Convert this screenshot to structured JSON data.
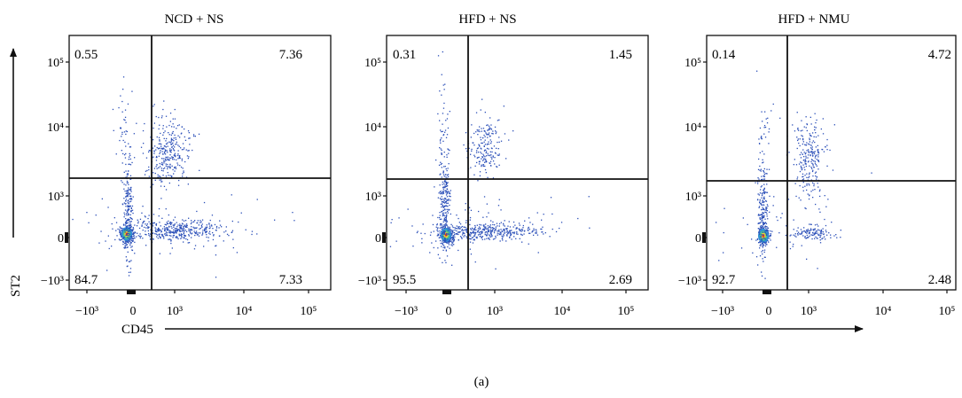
{
  "caption": "(a)",
  "axes": {
    "x_label": "CD45",
    "y_label": "ST2"
  },
  "chart_data": [
    {
      "type": "scatter",
      "title": "NCD + NS",
      "xlabel": "CD45",
      "ylabel": "ST2",
      "x_ticks": [
        "−10³",
        "0",
        "10³",
        "10⁴",
        "10⁵"
      ],
      "y_ticks": [
        "10⁵",
        "10⁴",
        "10³",
        "0",
        "−10³"
      ],
      "quadrants": {
        "upper_left": "0.55",
        "upper_right": "7.36",
        "lower_left": "84.7",
        "lower_right": "7.33"
      }
    },
    {
      "type": "scatter",
      "title": "HFD + NS",
      "xlabel": "CD45",
      "ylabel": "ST2",
      "x_ticks": [
        "−10³",
        "0",
        "10³",
        "10⁴",
        "10⁵"
      ],
      "y_ticks": [
        "10⁵",
        "10⁴",
        "10³",
        "0",
        "−10³"
      ],
      "quadrants": {
        "upper_left": "0.31",
        "upper_right": "1.45",
        "lower_left": "95.5",
        "lower_right": "2.69"
      }
    },
    {
      "type": "scatter",
      "title": "HFD + NMU",
      "xlabel": "CD45",
      "ylabel": "ST2",
      "x_ticks": [
        "−10³",
        "0",
        "10³",
        "10⁴",
        "10⁵"
      ],
      "y_ticks": [
        "10⁵",
        "10⁴",
        "10³",
        "0",
        "−10³"
      ],
      "quadrants": {
        "upper_left": "0.14",
        "upper_right": "4.72",
        "lower_left": "92.7",
        "lower_right": "2.48"
      }
    }
  ]
}
